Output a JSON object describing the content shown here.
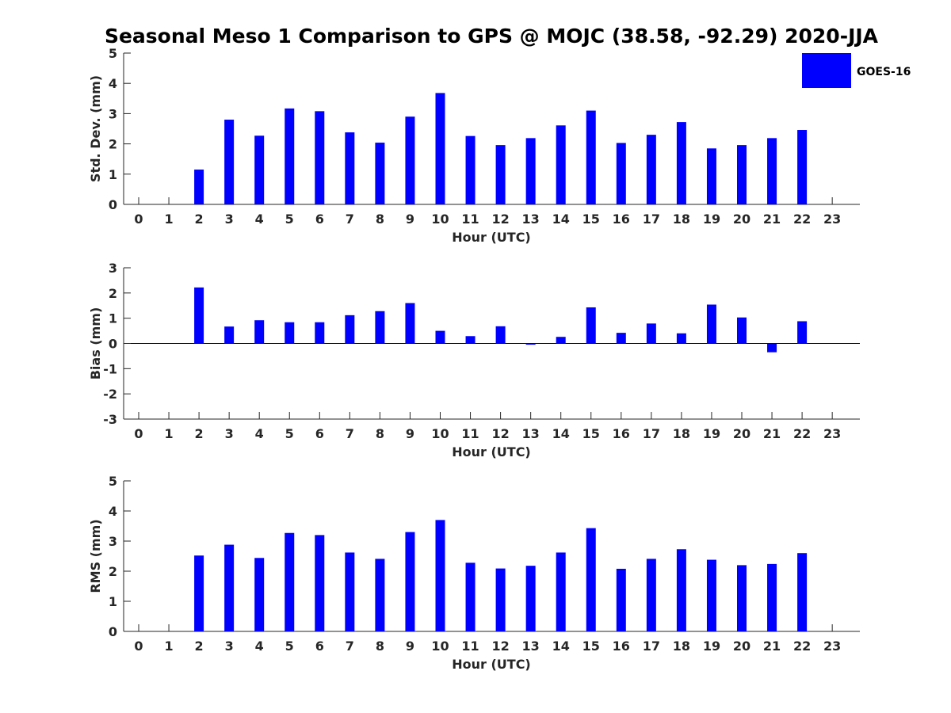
{
  "title": "Seasonal Meso 1 Comparison to GPS @ MOJC (38.58, -92.29) 2020-JJA",
  "legend": {
    "label": "GOES-16",
    "placement": "top-right"
  },
  "colors": {
    "bar": "#0000ff",
    "axis": "#262626"
  },
  "chart_data": [
    {
      "type": "bar",
      "categories": [
        "0",
        "1",
        "2",
        "3",
        "4",
        "5",
        "6",
        "7",
        "8",
        "9",
        "10",
        "11",
        "12",
        "13",
        "14",
        "15",
        "16",
        "17",
        "18",
        "19",
        "20",
        "21",
        "22",
        "23"
      ],
      "series": [
        {
          "name": "GOES-16",
          "values": [
            null,
            null,
            1.15,
            2.8,
            2.27,
            3.17,
            3.08,
            2.38,
            2.04,
            2.9,
            3.68,
            2.26,
            1.96,
            2.19,
            2.61,
            3.1,
            2.03,
            2.3,
            2.72,
            1.85,
            1.96,
            2.19,
            2.46,
            null
          ]
        }
      ],
      "xlabel": "Hour (UTC)",
      "ylabel": "Std. Dev. (mm)",
      "ylim": [
        0,
        5
      ],
      "yticks": [
        0,
        1,
        2,
        3,
        4,
        5
      ]
    },
    {
      "type": "bar",
      "categories": [
        "0",
        "1",
        "2",
        "3",
        "4",
        "5",
        "6",
        "7",
        "8",
        "9",
        "10",
        "11",
        "12",
        "13",
        "14",
        "15",
        "16",
        "17",
        "18",
        "19",
        "20",
        "21",
        "22",
        "23"
      ],
      "series": [
        {
          "name": "GOES-16",
          "values": [
            null,
            null,
            2.22,
            0.67,
            0.92,
            0.84,
            0.84,
            1.12,
            1.28,
            1.6,
            0.5,
            0.29,
            0.68,
            -0.05,
            0.26,
            1.43,
            0.42,
            0.79,
            0.4,
            1.54,
            1.03,
            -0.35,
            0.88,
            null
          ]
        }
      ],
      "xlabel": "Hour (UTC)",
      "ylabel": "Bias (mm)",
      "ylim": [
        -3,
        3
      ],
      "yticks": [
        -3,
        -2,
        -1,
        0,
        1,
        2,
        3
      ],
      "zero_line": true
    },
    {
      "type": "bar",
      "categories": [
        "0",
        "1",
        "2",
        "3",
        "4",
        "5",
        "6",
        "7",
        "8",
        "9",
        "10",
        "11",
        "12",
        "13",
        "14",
        "15",
        "16",
        "17",
        "18",
        "19",
        "20",
        "21",
        "22",
        "23"
      ],
      "series": [
        {
          "name": "GOES-16",
          "values": [
            null,
            null,
            2.52,
            2.88,
            2.44,
            3.27,
            3.2,
            2.62,
            2.41,
            3.3,
            3.7,
            2.28,
            2.09,
            2.18,
            2.62,
            3.43,
            2.08,
            2.41,
            2.73,
            2.38,
            2.2,
            2.24,
            2.6,
            null
          ]
        }
      ],
      "xlabel": "Hour (UTC)",
      "ylabel": "RMS (mm)",
      "ylim": [
        0,
        5
      ],
      "yticks": [
        0,
        1,
        2,
        3,
        4,
        5
      ]
    }
  ]
}
